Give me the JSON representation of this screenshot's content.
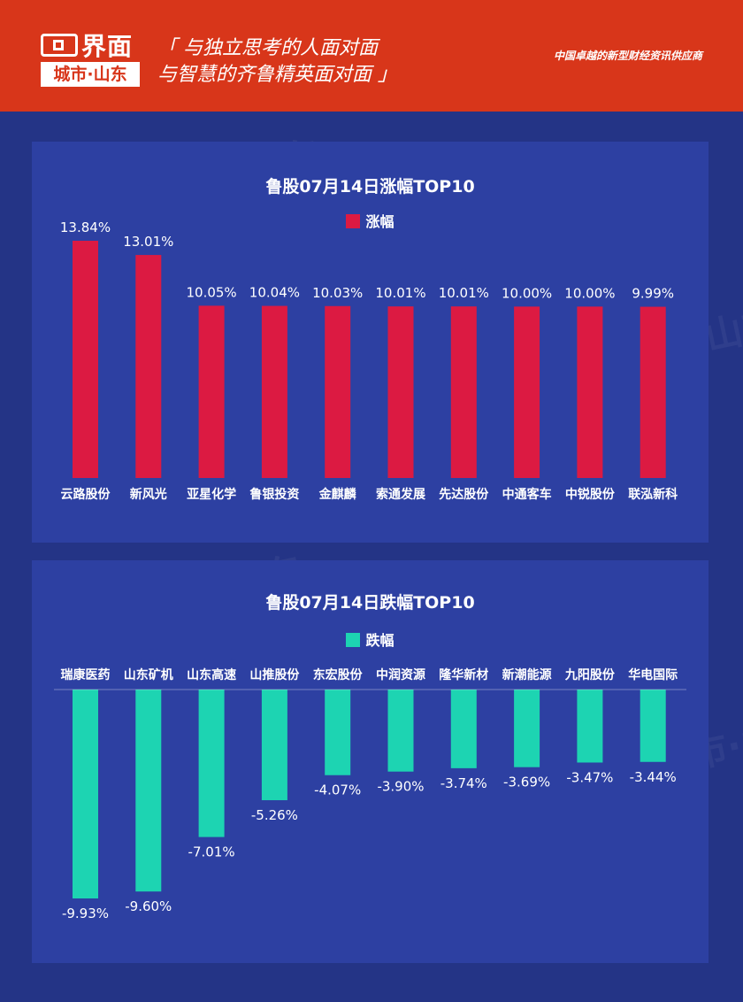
{
  "header": {
    "brand": "界面",
    "city": "城市·山东",
    "slogan_line1": "「 与独立思考的人面对面",
    "slogan_line2": "与智慧的齐鲁精英面对面 」",
    "tagline": "中国卓越的新型财经资讯供应商"
  },
  "watermark": {
    "text": "界面 城市·山东"
  },
  "colors": {
    "header": "#d8361a",
    "background": "#243486",
    "panel": "#2d40a2",
    "up": "#dc1a42",
    "down": "#1dd4b2"
  },
  "chart_data": [
    {
      "type": "bar",
      "title": "鲁股07月14日涨幅TOP10",
      "legend": "涨幅",
      "categories": [
        "云路股份",
        "新风光",
        "亚星化学",
        "鲁银投资",
        "金麒麟",
        "索通发展",
        "先达股份",
        "中通客车",
        "中锐股份",
        "联泓新科"
      ],
      "values": [
        13.84,
        13.01,
        10.05,
        10.04,
        10.03,
        10.01,
        10.01,
        10.0,
        10.0,
        9.99
      ],
      "labels": [
        "13.84%",
        "13.01%",
        "10.05%",
        "10.04%",
        "10.03%",
        "10.01%",
        "10.01%",
        "10.00%",
        "10.00%",
        "9.99%"
      ],
      "unit": "%",
      "color": "#dc1a42"
    },
    {
      "type": "bar",
      "title": "鲁股07月14日跌幅TOP10",
      "legend": "跌幅",
      "categories": [
        "瑞康医药",
        "山东矿机",
        "山东高速",
        "山推股份",
        "东宏股份",
        "中润资源",
        "隆华新材",
        "新潮能源",
        "九阳股份",
        "华电国际"
      ],
      "values": [
        -9.93,
        -9.6,
        -7.01,
        -5.26,
        -4.07,
        -3.9,
        -3.74,
        -3.69,
        -3.47,
        -3.44
      ],
      "labels": [
        "-9.93%",
        "-9.60%",
        "-7.01%",
        "-5.26%",
        "-4.07%",
        "-3.90%",
        "-3.74%",
        "-3.69%",
        "-3.47%",
        "-3.44%"
      ],
      "unit": "%",
      "color": "#1dd4b2"
    }
  ]
}
